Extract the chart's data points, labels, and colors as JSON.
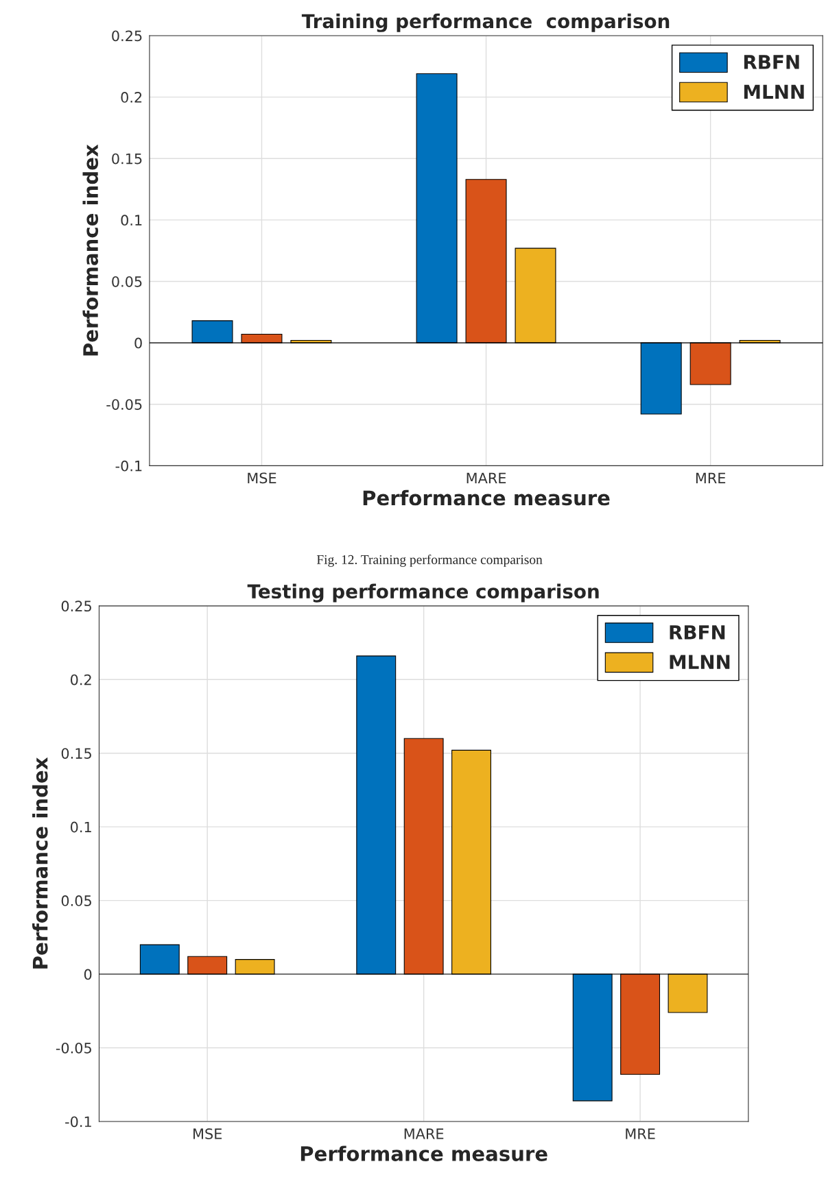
{
  "chart_data": [
    {
      "type": "bar",
      "title": "Training performance  comparison",
      "xlabel": "Performance measure",
      "ylabel": "Performance index",
      "categories": [
        "MSE",
        "MARE",
        "MRE"
      ],
      "series": [
        {
          "name": "RBFN",
          "color": "#0072bd",
          "values": [
            0.018,
            0.219,
            -0.058
          ]
        },
        {
          "color": "#d95319",
          "values": [
            0.007,
            0.133,
            -0.034
          ]
        },
        {
          "name": "MLNN",
          "color": "#edb120",
          "values": [
            0.002,
            0.077,
            0.002
          ]
        }
      ],
      "ylim": [
        -0.1,
        0.25
      ],
      "yticks": [
        -0.1,
        -0.05,
        0,
        0.05,
        0.1,
        0.15,
        0.2,
        0.25
      ],
      "grid": true,
      "legend": "top right",
      "annotations": [
        "Fig. 12. Training performance comparison"
      ]
    },
    {
      "type": "bar",
      "title": "Testing performance comparison",
      "xlabel": "Performance measure",
      "ylabel": "Performance index",
      "categories": [
        "MSE",
        "MARE",
        "MRE"
      ],
      "series": [
        {
          "name": "RBFN",
          "color": "#0072bd",
          "values": [
            0.02,
            0.216,
            -0.086
          ]
        },
        {
          "color": "#d95319",
          "values": [
            0.012,
            0.16,
            -0.068
          ]
        },
        {
          "name": "MLNN",
          "color": "#edb120",
          "values": [
            0.01,
            0.152,
            -0.026
          ]
        }
      ],
      "ylim": [
        -0.1,
        0.25
      ],
      "yticks": [
        -0.1,
        -0.05,
        0,
        0.05,
        0.1,
        0.15,
        0.2,
        0.25
      ],
      "grid": true,
      "legend": "top right"
    }
  ]
}
